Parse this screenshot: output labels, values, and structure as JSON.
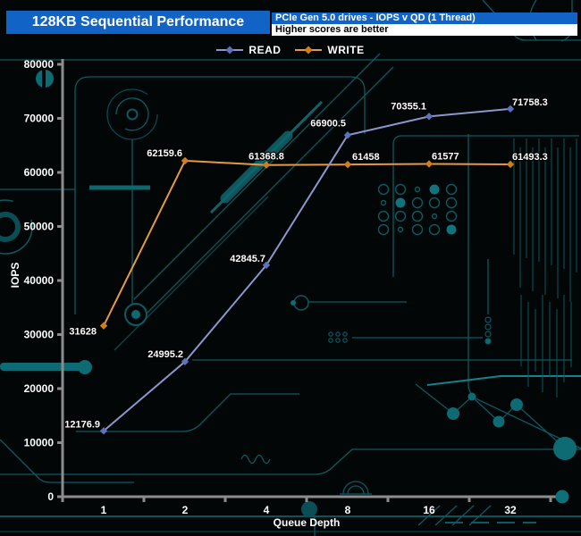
{
  "header": {
    "title": "128KB Sequential Performance",
    "subtitle": "PCIe Gen 5.0 drives - IOPS v QD (1 Thread)",
    "note": "Higher scores are better"
  },
  "colors": {
    "header_blue": "#1163c6",
    "note_bg": "#ffffff",
    "axis_gray": "#8c8c8c",
    "circuit_teal": "#0e5f66",
    "circuit_teal_bright": "#14828c",
    "label_text": "#ffffff",
    "axis_end_dot": "#0e7078"
  },
  "chart_data": {
    "type": "line",
    "title": "128KB Sequential Performance",
    "subtitle": "PCIe Gen 5.0 drives - IOPS v QD (1 Thread)",
    "note": "Higher scores are better",
    "xlabel": "Queue Depth",
    "ylabel": "IOPS",
    "categories": [
      "1",
      "2",
      "4",
      "8",
      "16",
      "32"
    ],
    "y_ticks": [
      0,
      10000,
      20000,
      30000,
      40000,
      50000,
      60000,
      70000,
      80000
    ],
    "ylim": [
      0,
      80000
    ],
    "grid": false,
    "legend_position": "top-center",
    "series": [
      {
        "name": "READ",
        "color": "#8a97cd",
        "marker_color": "#5d72b8",
        "values": [
          12176.9,
          24995.2,
          42845.7,
          66900.5,
          70355.1,
          71758.3
        ],
        "labels": [
          "12176.9",
          "24995.2",
          "42845.7",
          "66900.5",
          "70355.1",
          "71758.3"
        ]
      },
      {
        "name": "WRITE",
        "color": "#e69a3e",
        "marker_color": "#cf7d1d",
        "values": [
          31628,
          62159.6,
          61368.8,
          61458,
          61577,
          61493.3
        ],
        "labels": [
          "31628",
          "62159.6",
          "61368.8",
          "61458",
          "61577",
          "61493.3"
        ]
      }
    ]
  }
}
